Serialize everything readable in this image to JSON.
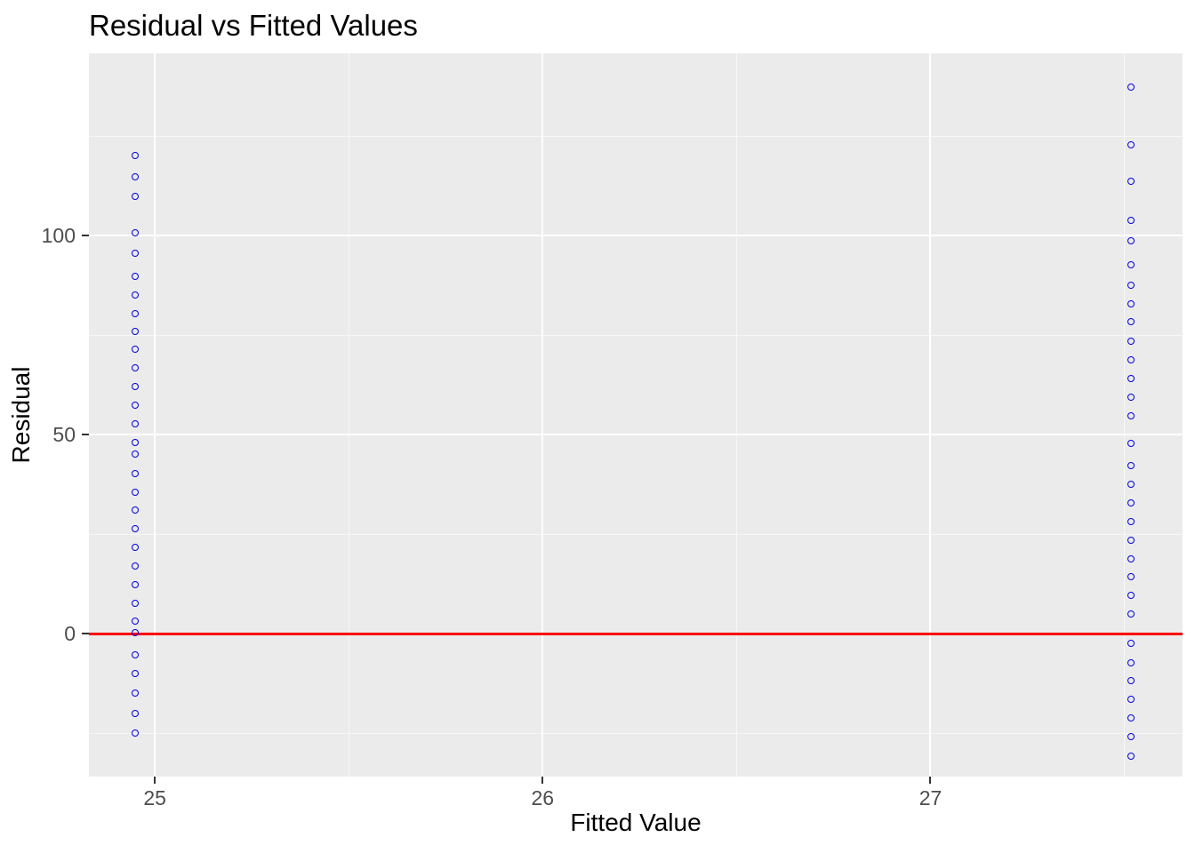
{
  "chart_data": {
    "type": "scatter",
    "title": "Residual vs Fitted Values",
    "xlabel": "Fitted Value",
    "ylabel": "Residual",
    "xlim": [
      24.83,
      27.65
    ],
    "ylim": [
      -35.9,
      145.8
    ],
    "x_major_ticks": [
      25,
      26,
      27
    ],
    "x_tick_labels": [
      "25",
      "26",
      "27"
    ],
    "x_minor_ticks": [
      25.5,
      26.5,
      27.5
    ],
    "y_major_ticks": [
      0,
      50,
      100
    ],
    "y_tick_labels": [
      "0",
      "50",
      "100"
    ],
    "y_minor_ticks": [
      -25,
      25,
      75,
      125
    ],
    "grid": "on",
    "legend": "none",
    "panel_background": "#EBEBEB",
    "gridline_major_color": "#FFFFFF",
    "gridline_minor_color": "#F7F7F7",
    "tick_label_color": "#4D4D4D",
    "tick_mark_color": "#333333",
    "point_color": "#0000E0",
    "reference_line": {
      "type": "hline",
      "y": 0,
      "color": "#FF0000"
    },
    "series": [
      {
        "name": "group-fitted-24.95",
        "fitted": 24.95,
        "residuals": [
          119.9,
          114.7,
          109.7,
          100.5,
          95.3,
          89.6,
          84.9,
          80.3,
          75.8,
          71.2,
          66.5,
          61.9,
          57.2,
          52.6,
          47.9,
          44.9,
          40.1,
          35.4,
          30.8,
          26.1,
          21.5,
          16.8,
          12.2,
          7.5,
          2.9,
          0.1,
          -5.5,
          -10.1,
          -15.0,
          -20.2,
          -25.2
        ]
      },
      {
        "name": "group-fitted-27.52",
        "fitted": 27.52,
        "residuals": [
          137.2,
          122.7,
          113.4,
          103.7,
          98.5,
          92.6,
          87.3,
          82.7,
          78.1,
          73.2,
          68.5,
          63.9,
          59.2,
          54.6,
          47.7,
          42.0,
          37.3,
          32.7,
          28.0,
          23.4,
          18.7,
          14.1,
          9.4,
          4.8,
          -2.7,
          -7.4,
          -12.0,
          -16.7,
          -21.3,
          -26.0,
          -31.0
        ]
      }
    ]
  }
}
